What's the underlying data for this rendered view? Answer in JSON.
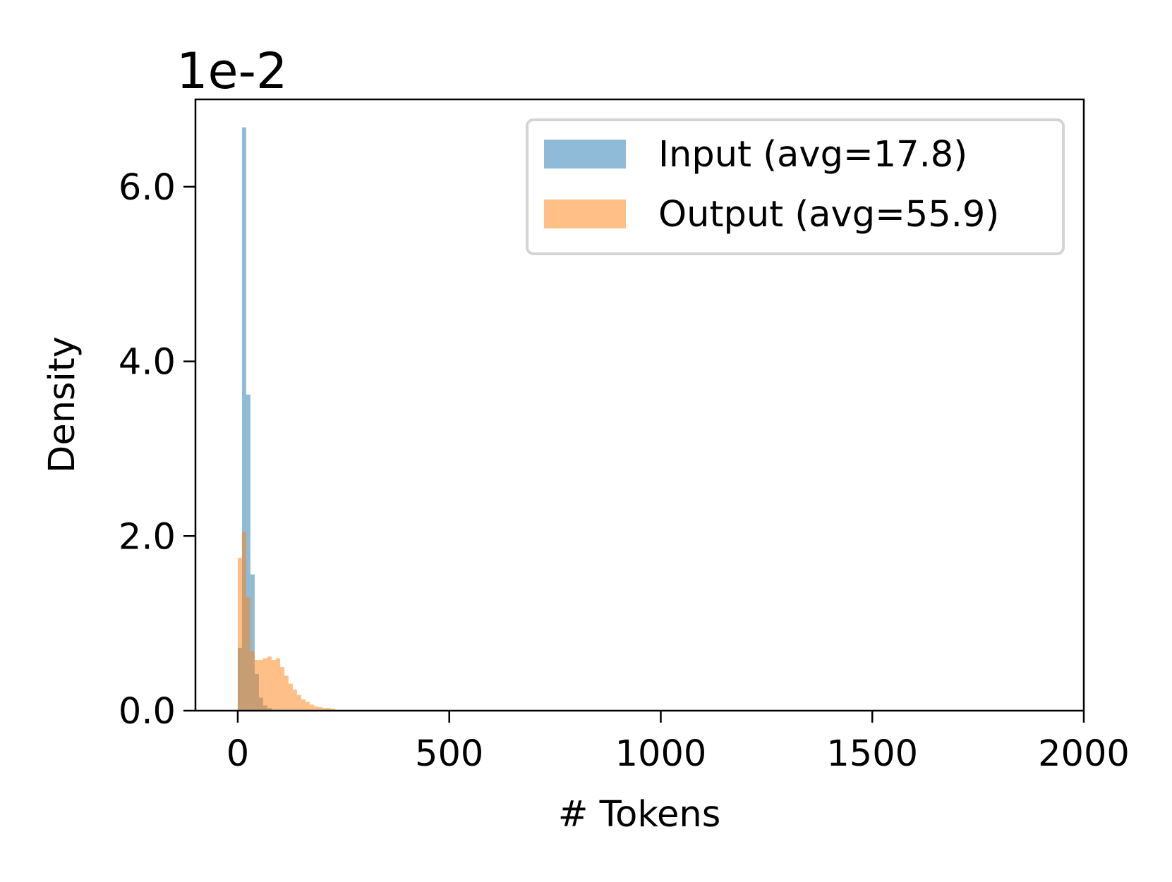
{
  "chart_data": {
    "type": "histogram",
    "xlabel": "# Tokens",
    "ylabel": "Density",
    "y_offset_text": "1e-2",
    "xlim": [
      -100,
      2000
    ],
    "ylim": [
      0,
      7.0
    ],
    "y_unit_multiplier": 0.01,
    "xticks": [
      0,
      500,
      1000,
      1500,
      2000
    ],
    "xtick_labels": [
      "0",
      "500",
      "1000",
      "1500",
      "2000"
    ],
    "yticks": [
      0,
      2,
      4,
      6
    ],
    "ytick_labels": [
      "0.0",
      "2.0",
      "4.0",
      "6.0"
    ],
    "grid": false,
    "legend_position": "upper right",
    "bin_width": 10,
    "series": [
      {
        "name": "Input (avg=17.8)",
        "color": "#1f77b4",
        "alpha": 0.5,
        "bins": [
          {
            "x0": 0,
            "x1": 10,
            "density": 0.72
          },
          {
            "x0": 10,
            "x1": 20,
            "density": 6.68
          },
          {
            "x0": 20,
            "x1": 30,
            "density": 3.62
          },
          {
            "x0": 30,
            "x1": 40,
            "density": 1.56
          },
          {
            "x0": 40,
            "x1": 50,
            "density": 0.42
          },
          {
            "x0": 50,
            "x1": 60,
            "density": 0.15
          },
          {
            "x0": 60,
            "x1": 70,
            "density": 0.06
          },
          {
            "x0": 70,
            "x1": 80,
            "density": 0.03
          },
          {
            "x0": 80,
            "x1": 90,
            "density": 0.01
          }
        ]
      },
      {
        "name": "Output (avg=55.9)",
        "color": "#ff7f0e",
        "alpha": 0.5,
        "bins": [
          {
            "x0": 0,
            "x1": 10,
            "density": 1.75
          },
          {
            "x0": 10,
            "x1": 20,
            "density": 2.05
          },
          {
            "x0": 20,
            "x1": 30,
            "density": 1.3
          },
          {
            "x0": 30,
            "x1": 40,
            "density": 0.68
          },
          {
            "x0": 40,
            "x1": 50,
            "density": 0.58
          },
          {
            "x0": 50,
            "x1": 60,
            "density": 0.58
          },
          {
            "x0": 60,
            "x1": 70,
            "density": 0.6
          },
          {
            "x0": 70,
            "x1": 80,
            "density": 0.62
          },
          {
            "x0": 80,
            "x1": 90,
            "density": 0.58
          },
          {
            "x0": 90,
            "x1": 100,
            "density": 0.6
          },
          {
            "x0": 100,
            "x1": 110,
            "density": 0.5
          },
          {
            "x0": 110,
            "x1": 120,
            "density": 0.4
          },
          {
            "x0": 120,
            "x1": 130,
            "density": 0.31
          },
          {
            "x0": 130,
            "x1": 140,
            "density": 0.24
          },
          {
            "x0": 140,
            "x1": 150,
            "density": 0.18
          },
          {
            "x0": 150,
            "x1": 160,
            "density": 0.13
          },
          {
            "x0": 160,
            "x1": 170,
            "density": 0.1
          },
          {
            "x0": 170,
            "x1": 180,
            "density": 0.07
          },
          {
            "x0": 180,
            "x1": 190,
            "density": 0.05
          },
          {
            "x0": 190,
            "x1": 200,
            "density": 0.04
          },
          {
            "x0": 200,
            "x1": 210,
            "density": 0.03
          },
          {
            "x0": 210,
            "x1": 220,
            "density": 0.03
          },
          {
            "x0": 220,
            "x1": 230,
            "density": 0.02
          },
          {
            "x0": 230,
            "x1": 240,
            "density": 0.01
          },
          {
            "x0": 240,
            "x1": 250,
            "density": 0.01
          }
        ]
      }
    ]
  }
}
